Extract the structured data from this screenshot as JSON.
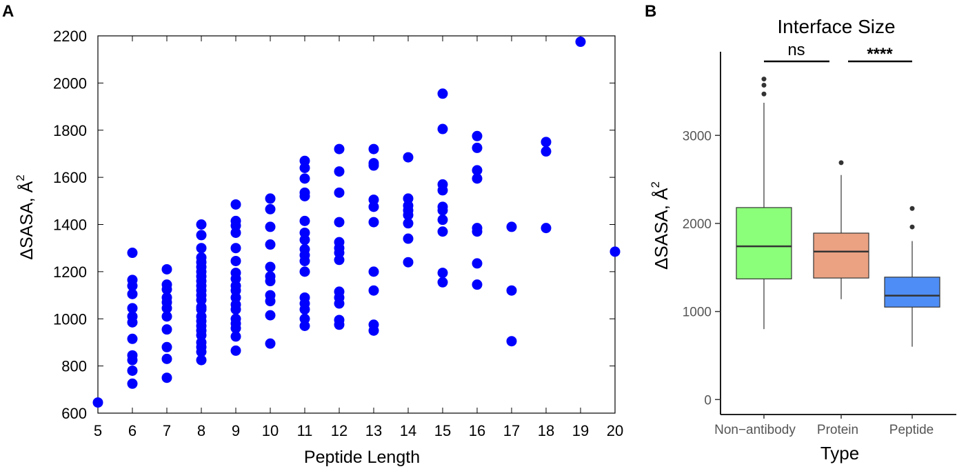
{
  "panels": {
    "a": {
      "letter": "A"
    },
    "b": {
      "letter": "B"
    }
  },
  "chart_data": [
    {
      "type": "scatter",
      "panel": "A",
      "title": "",
      "xlabel": "Peptide Length",
      "ylabel": "ΔSASA, Å",
      "ylabel_superscript": "2",
      "xlim": [
        5,
        20
      ],
      "ylim": [
        600,
        2200
      ],
      "xticks": [
        5,
        6,
        7,
        8,
        9,
        10,
        11,
        12,
        13,
        14,
        15,
        16,
        17,
        18,
        19,
        20
      ],
      "yticks": [
        600,
        800,
        1000,
        1200,
        1400,
        1600,
        1800,
        2000,
        2200
      ],
      "marker_color": "#0000ff",
      "grid": false,
      "points": [
        [
          5,
          645
        ],
        [
          6,
          1280
        ],
        [
          6,
          1165
        ],
        [
          6,
          1140
        ],
        [
          6,
          1105
        ],
        [
          6,
          1045
        ],
        [
          6,
          1010
        ],
        [
          6,
          985
        ],
        [
          6,
          915
        ],
        [
          6,
          845
        ],
        [
          6,
          825
        ],
        [
          6,
          780
        ],
        [
          6,
          725
        ],
        [
          7,
          1210
        ],
        [
          7,
          1145
        ],
        [
          7,
          1125
        ],
        [
          7,
          1090
        ],
        [
          7,
          1070
        ],
        [
          7,
          1045
        ],
        [
          7,
          1010
        ],
        [
          7,
          955
        ],
        [
          7,
          880
        ],
        [
          7,
          830
        ],
        [
          7,
          750
        ],
        [
          8,
          1400
        ],
        [
          8,
          1355
        ],
        [
          8,
          1300
        ],
        [
          8,
          1260
        ],
        [
          8,
          1240
        ],
        [
          8,
          1220
        ],
        [
          8,
          1200
        ],
        [
          8,
          1180
        ],
        [
          8,
          1160
        ],
        [
          8,
          1140
        ],
        [
          8,
          1120
        ],
        [
          8,
          1100
        ],
        [
          8,
          1080
        ],
        [
          8,
          1050
        ],
        [
          8,
          1040
        ],
        [
          8,
          1010
        ],
        [
          8,
          990
        ],
        [
          8,
          970
        ],
        [
          8,
          950
        ],
        [
          8,
          930
        ],
        [
          8,
          900
        ],
        [
          8,
          880
        ],
        [
          8,
          860
        ],
        [
          8,
          825
        ],
        [
          9,
          1485
        ],
        [
          9,
          1415
        ],
        [
          9,
          1395
        ],
        [
          9,
          1365
        ],
        [
          9,
          1300
        ],
        [
          9,
          1245
        ],
        [
          9,
          1195
        ],
        [
          9,
          1170
        ],
        [
          9,
          1140
        ],
        [
          9,
          1120
        ],
        [
          9,
          1090
        ],
        [
          9,
          1060
        ],
        [
          9,
          1040
        ],
        [
          9,
          1000
        ],
        [
          9,
          980
        ],
        [
          9,
          960
        ],
        [
          9,
          925
        ],
        [
          9,
          865
        ],
        [
          10,
          1510
        ],
        [
          10,
          1465
        ],
        [
          10,
          1390
        ],
        [
          10,
          1315
        ],
        [
          10,
          1220
        ],
        [
          10,
          1180
        ],
        [
          10,
          1160
        ],
        [
          10,
          1100
        ],
        [
          10,
          1075
        ],
        [
          10,
          1015
        ],
        [
          10,
          895
        ],
        [
          11,
          1670
        ],
        [
          11,
          1640
        ],
        [
          11,
          1595
        ],
        [
          11,
          1535
        ],
        [
          11,
          1520
        ],
        [
          11,
          1415
        ],
        [
          11,
          1365
        ],
        [
          11,
          1335
        ],
        [
          11,
          1295
        ],
        [
          11,
          1270
        ],
        [
          11,
          1245
        ],
        [
          11,
          1200
        ],
        [
          11,
          1090
        ],
        [
          11,
          1065
        ],
        [
          11,
          1040
        ],
        [
          11,
          1000
        ],
        [
          11,
          970
        ],
        [
          12,
          1720
        ],
        [
          12,
          1625
        ],
        [
          12,
          1535
        ],
        [
          12,
          1410
        ],
        [
          12,
          1325
        ],
        [
          12,
          1300
        ],
        [
          12,
          1280
        ],
        [
          12,
          1250
        ],
        [
          12,
          1115
        ],
        [
          12,
          1090
        ],
        [
          12,
          1065
        ],
        [
          12,
          995
        ],
        [
          12,
          975
        ],
        [
          13,
          1720
        ],
        [
          13,
          1660
        ],
        [
          13,
          1650
        ],
        [
          13,
          1505
        ],
        [
          13,
          1475
        ],
        [
          13,
          1410
        ],
        [
          13,
          1200
        ],
        [
          13,
          1120
        ],
        [
          13,
          975
        ],
        [
          13,
          950
        ],
        [
          14,
          1685
        ],
        [
          14,
          1510
        ],
        [
          14,
          1480
        ],
        [
          14,
          1460
        ],
        [
          14,
          1440
        ],
        [
          14,
          1405
        ],
        [
          14,
          1340
        ],
        [
          14,
          1240
        ],
        [
          15,
          1955
        ],
        [
          15,
          1805
        ],
        [
          15,
          1570
        ],
        [
          15,
          1545
        ],
        [
          15,
          1475
        ],
        [
          15,
          1460
        ],
        [
          15,
          1420
        ],
        [
          15,
          1370
        ],
        [
          15,
          1195
        ],
        [
          15,
          1155
        ],
        [
          16,
          1775
        ],
        [
          16,
          1725
        ],
        [
          16,
          1630
        ],
        [
          16,
          1595
        ],
        [
          16,
          1385
        ],
        [
          16,
          1370
        ],
        [
          16,
          1235
        ],
        [
          16,
          1145
        ],
        [
          17,
          1390
        ],
        [
          17,
          1120
        ],
        [
          17,
          905
        ],
        [
          18,
          1750
        ],
        [
          18,
          1710
        ],
        [
          18,
          1385
        ],
        [
          19,
          2175
        ],
        [
          20,
          1285
        ]
      ]
    },
    {
      "type": "box",
      "panel": "B",
      "title": "Interface Size",
      "xlabel": "Type",
      "ylabel": "ΔSASA, Å",
      "ylabel_superscript": "2",
      "ylim": [
        -170,
        3950
      ],
      "yticks": [
        0,
        1000,
        2000,
        3000
      ],
      "grid": false,
      "categories": [
        "Non−antibody",
        "Protein",
        "Peptide"
      ],
      "boxes": [
        {
          "category": "Non−antibody",
          "color": "#8cff7a",
          "whisker_low": 800,
          "q1": 1370,
          "median": 1740,
          "q3": 2180,
          "whisker_high": 3370,
          "outliers": [
            3470,
            3570,
            3640
          ]
        },
        {
          "category": "Protein",
          "color": "#eba283",
          "whisker_low": 1140,
          "q1": 1380,
          "median": 1680,
          "q3": 1890,
          "whisker_high": 2550,
          "outliers": [
            2690
          ]
        },
        {
          "category": "Peptide",
          "color": "#4e8df5",
          "whisker_low": 600,
          "q1": 1050,
          "median": 1180,
          "q3": 1390,
          "whisker_high": 1800,
          "outliers": [
            1960,
            2170
          ]
        }
      ],
      "significance": [
        {
          "label": "ns",
          "from": "Non−antibody",
          "to": "Protein"
        },
        {
          "label": "****",
          "from": "Protein",
          "to": "Peptide"
        }
      ]
    }
  ]
}
